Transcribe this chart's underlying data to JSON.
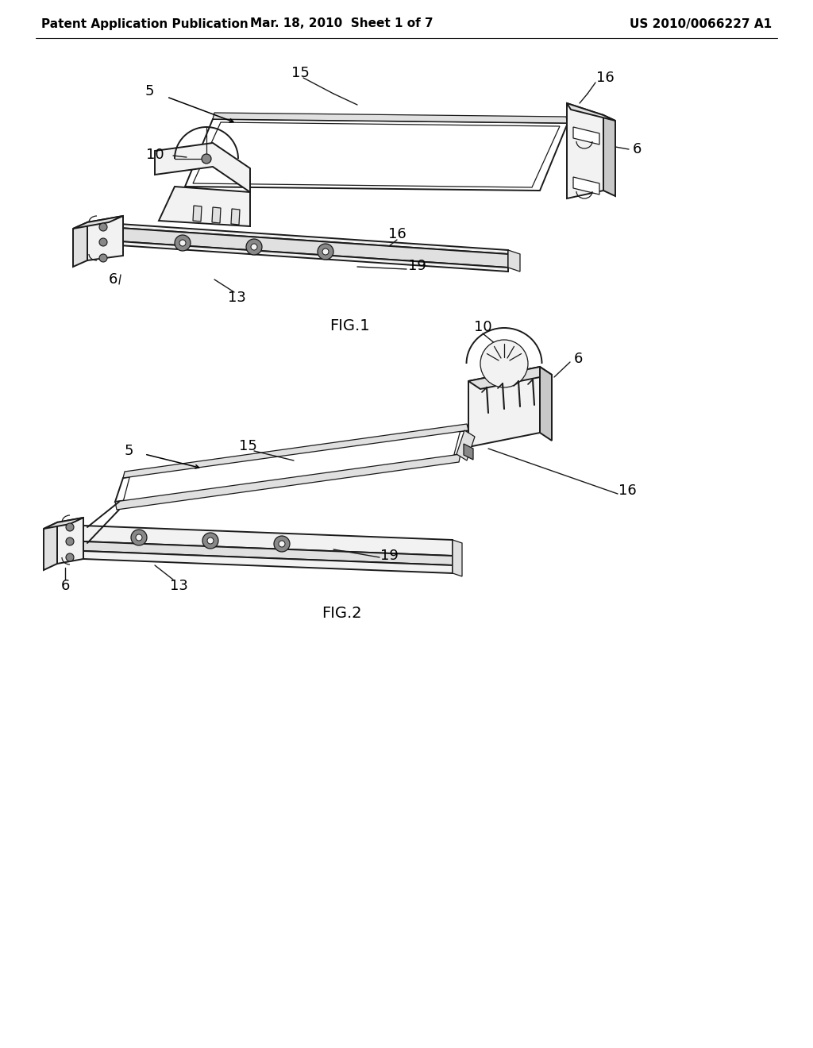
{
  "bg": "#ffffff",
  "header_left": "Patent Application Publication",
  "header_mid": "Mar. 18, 2010  Sheet 1 of 7",
  "header_right": "US 2010/0066227 A1",
  "header_fs": 11,
  "ref_fs": 13,
  "fig_fs": 14,
  "lc": "#1a1a1a",
  "fc_white": "#ffffff",
  "fc_light": "#f2f2f2",
  "fc_mid": "#e0e0e0",
  "fc_dark": "#c8c8c8",
  "fc_vdark": "#888888"
}
